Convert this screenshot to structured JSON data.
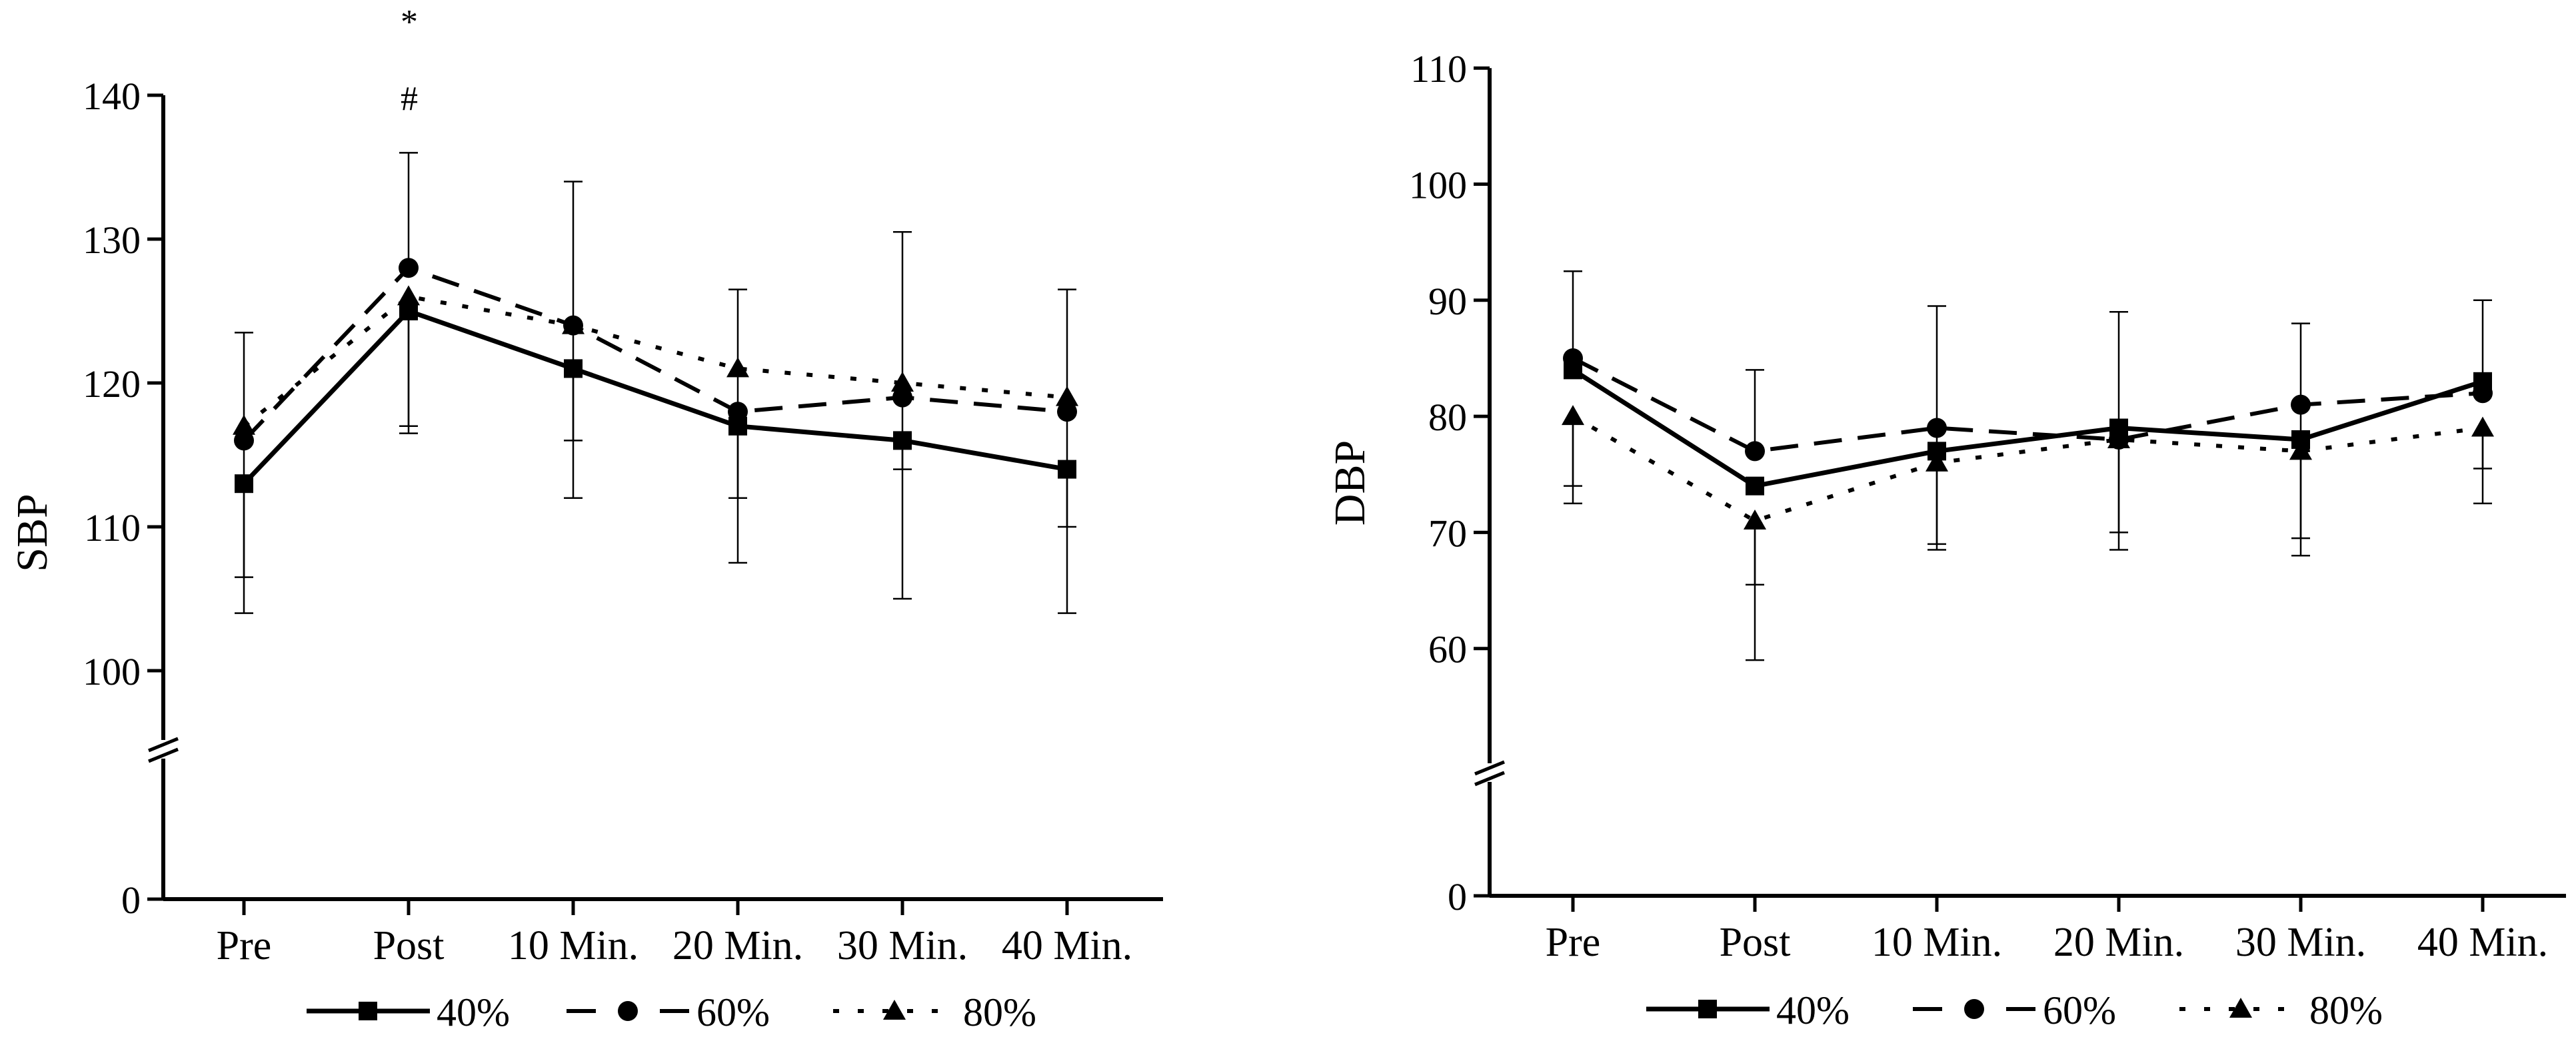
{
  "chart_data": [
    {
      "type": "line",
      "title": "",
      "xlabel": "",
      "ylabel": "SBP",
      "categories": [
        "Pre",
        "Post",
        "10 Min.",
        "20 Min.",
        "30 Min.",
        "40 Min."
      ],
      "y_ticks": [
        "0",
        "100",
        "110",
        "120",
        "130",
        "140"
      ],
      "axis_break": true,
      "ylim_upper_segment": [
        95,
        140
      ],
      "series": [
        {
          "name": "40%",
          "marker": "square",
          "line_style": "solid",
          "values": [
            113,
            125,
            121,
            117,
            116,
            114
          ],
          "error_lower": [
            104,
            117,
            112,
            107.5,
            105,
            104
          ],
          "error_upper": [
            null,
            null,
            null,
            null,
            null,
            null
          ]
        },
        {
          "name": "60%",
          "marker": "circle",
          "line_style": "dashed",
          "values": [
            116,
            128,
            124,
            118,
            119,
            118
          ],
          "error_lower": [
            null,
            null,
            null,
            null,
            null,
            null
          ],
          "error_upper": [
            null,
            136,
            134,
            null,
            null,
            null
          ]
        },
        {
          "name": "80%",
          "marker": "triangle",
          "line_style": "dotted",
          "values": [
            117,
            126,
            124,
            121,
            120,
            119
          ],
          "error_lower": [
            106.5,
            116.5,
            116,
            112,
            114,
            110
          ],
          "error_upper": [
            123.5,
            null,
            null,
            126.5,
            130.5,
            126.5
          ]
        }
      ],
      "annotations": [
        {
          "text": "*",
          "category": "Post"
        },
        {
          "text": "#",
          "category": "Post"
        }
      ],
      "legend": "bottom"
    },
    {
      "type": "line",
      "title": "",
      "xlabel": "",
      "ylabel": "DBP",
      "categories": [
        "Pre",
        "Post",
        "10 Min.",
        "20 Min.",
        "30 Min.",
        "40 Min."
      ],
      "y_ticks": [
        "0",
        "60",
        "70",
        "80",
        "90",
        "100",
        "110"
      ],
      "axis_break": true,
      "ylim_upper_segment": [
        50,
        110
      ],
      "series": [
        {
          "name": "40%",
          "marker": "square",
          "line_style": "solid",
          "values": [
            84,
            74,
            77,
            79,
            78,
            83
          ],
          "error_lower": [
            null,
            null,
            null,
            null,
            null,
            null
          ],
          "error_upper": [
            null,
            null,
            null,
            null,
            null,
            90
          ]
        },
        {
          "name": "60%",
          "marker": "circle",
          "line_style": "dashed",
          "values": [
            85,
            77,
            79,
            78,
            81,
            82
          ],
          "error_lower": [
            null,
            null,
            69,
            68.5,
            68,
            null
          ],
          "error_upper": [
            92.5,
            84,
            89.5,
            89,
            88,
            null
          ]
        },
        {
          "name": "80%",
          "marker": "triangle",
          "line_style": "dotted",
          "values": [
            80,
            71,
            76,
            78,
            77,
            79
          ],
          "error_lower": [
            72.5,
            59,
            68.5,
            70,
            69.5,
            72.5
          ],
          "error_upper": [
            74,
            65.5,
            null,
            null,
            null,
            75.5
          ]
        }
      ],
      "annotations": [],
      "legend": "bottom"
    }
  ]
}
